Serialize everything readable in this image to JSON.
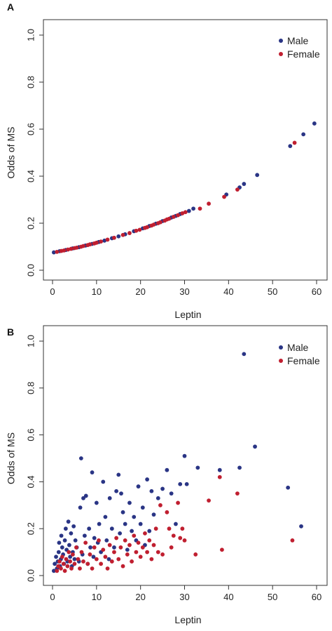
{
  "colors": {
    "male": "#2a3585",
    "female": "#c01f30",
    "axis": "#333333"
  },
  "chart_data": [
    {
      "panel": "A",
      "type": "scatter",
      "xlabel": "Leptin",
      "ylabel": "Odds of MS",
      "xlim": [
        0,
        60
      ],
      "ylim": [
        0,
        1.0
      ],
      "xticks": [
        "0",
        "10",
        "20",
        "30",
        "40",
        "50",
        "60"
      ],
      "yticks": [
        "0.0",
        "0.2",
        "0.4",
        "0.6",
        "0.8",
        "1.0"
      ],
      "grid": false,
      "legend": "top-right",
      "series": [
        {
          "name": "Male",
          "color": "#2a3585",
          "points": [
            [
              0.3,
              0.076
            ],
            [
              1.6,
              0.081
            ],
            [
              3.0,
              0.086
            ],
            [
              4.6,
              0.093
            ],
            [
              6.0,
              0.098
            ],
            [
              7.5,
              0.105
            ],
            [
              9.0,
              0.112
            ],
            [
              10.5,
              0.12
            ],
            [
              11.8,
              0.126
            ],
            [
              13.5,
              0.136
            ],
            [
              15.0,
              0.144
            ],
            [
              16.5,
              0.153
            ],
            [
              18.5,
              0.166
            ],
            [
              20.5,
              0.178
            ],
            [
              22.0,
              0.188
            ],
            [
              23.5,
              0.198
            ],
            [
              25.0,
              0.209
            ],
            [
              27.0,
              0.224
            ],
            [
              28.0,
              0.231
            ],
            [
              29.0,
              0.239
            ],
            [
              31.0,
              0.252
            ],
            [
              32.0,
              0.262
            ],
            [
              39.5,
              0.322
            ],
            [
              42.5,
              0.352
            ],
            [
              43.5,
              0.367
            ],
            [
              46.5,
              0.405
            ],
            [
              54.0,
              0.528
            ],
            [
              57.0,
              0.578
            ],
            [
              59.5,
              0.624
            ]
          ]
        },
        {
          "name": "Female",
          "color": "#c01f30",
          "points": [
            [
              1.0,
              0.078
            ],
            [
              2.0,
              0.082
            ],
            [
              2.6,
              0.084
            ],
            [
              3.5,
              0.088
            ],
            [
              4.2,
              0.091
            ],
            [
              5.0,
              0.094
            ],
            [
              5.5,
              0.096
            ],
            [
              6.5,
              0.1
            ],
            [
              7.0,
              0.103
            ],
            [
              8.0,
              0.107
            ],
            [
              8.5,
              0.11
            ],
            [
              9.5,
              0.114
            ],
            [
              10.0,
              0.117
            ],
            [
              11.0,
              0.122
            ],
            [
              12.5,
              0.13
            ],
            [
              14.0,
              0.138
            ],
            [
              16.0,
              0.15
            ],
            [
              17.5,
              0.158
            ],
            [
              19.0,
              0.168
            ],
            [
              19.8,
              0.172
            ],
            [
              21.0,
              0.18
            ],
            [
              21.5,
              0.183
            ],
            [
              22.5,
              0.19
            ],
            [
              23.0,
              0.194
            ],
            [
              24.0,
              0.2
            ],
            [
              24.5,
              0.204
            ],
            [
              25.5,
              0.211
            ],
            [
              26.0,
              0.216
            ],
            [
              26.5,
              0.219
            ],
            [
              27.5,
              0.227
            ],
            [
              28.5,
              0.234
            ],
            [
              29.5,
              0.242
            ],
            [
              30.2,
              0.247
            ],
            [
              33.5,
              0.262
            ],
            [
              35.5,
              0.283
            ],
            [
              39.0,
              0.312
            ],
            [
              42.0,
              0.343
            ],
            [
              55.0,
              0.542
            ]
          ]
        }
      ]
    },
    {
      "panel": "B",
      "type": "scatter",
      "xlabel": "Leptin",
      "ylabel": "Odds of MS",
      "xlim": [
        0,
        60
      ],
      "ylim": [
        0,
        1.0
      ],
      "xticks": [
        "0",
        "10",
        "20",
        "30",
        "40",
        "50",
        "60"
      ],
      "yticks": [
        "0.0",
        "0.2",
        "0.4",
        "0.6",
        "0.8",
        "1.0"
      ],
      "grid": false,
      "legend": "top-right",
      "series": [
        {
          "name": "Male",
          "color": "#2a3585",
          "points": [
            [
              0.3,
              0.02
            ],
            [
              0.5,
              0.05
            ],
            [
              0.8,
              0.08
            ],
            [
              1.0,
              0.03
            ],
            [
              1.2,
              0.06
            ],
            [
              1.4,
              0.1
            ],
            [
              1.5,
              0.14
            ],
            [
              1.7,
              0.04
            ],
            [
              1.9,
              0.07
            ],
            [
              2.0,
              0.17
            ],
            [
              2.2,
              0.12
            ],
            [
              2.4,
              0.09
            ],
            [
              2.6,
              0.05
            ],
            [
              2.8,
              0.15
            ],
            [
              3.0,
              0.2
            ],
            [
              3.2,
              0.11
            ],
            [
              3.4,
              0.06
            ],
            [
              3.6,
              0.23
            ],
            [
              3.8,
              0.13
            ],
            [
              4.0,
              0.08
            ],
            [
              4.2,
              0.18
            ],
            [
              4.4,
              0.04
            ],
            [
              4.6,
              0.1
            ],
            [
              4.8,
              0.21
            ],
            [
              5.0,
              0.07
            ],
            [
              5.2,
              0.15
            ],
            [
              5.5,
              0.12
            ],
            [
              6.0,
              0.06
            ],
            [
              6.3,
              0.29
            ],
            [
              6.5,
              0.5
            ],
            [
              6.8,
              0.09
            ],
            [
              7.0,
              0.33
            ],
            [
              7.3,
              0.17
            ],
            [
              7.6,
              0.34
            ],
            [
              8.0,
              0.05
            ],
            [
              8.3,
              0.2
            ],
            [
              8.6,
              0.12
            ],
            [
              9.0,
              0.44
            ],
            [
              9.3,
              0.08
            ],
            [
              9.5,
              0.16
            ],
            [
              10.0,
              0.31
            ],
            [
              10.3,
              0.14
            ],
            [
              10.6,
              0.22
            ],
            [
              11.0,
              0.1
            ],
            [
              11.5,
              0.4
            ],
            [
              12.0,
              0.25
            ],
            [
              12.3,
              0.15
            ],
            [
              12.8,
              0.07
            ],
            [
              13.0,
              0.33
            ],
            [
              13.5,
              0.2
            ],
            [
              14.0,
              0.12
            ],
            [
              14.5,
              0.36
            ],
            [
              15.0,
              0.43
            ],
            [
              15.3,
              0.18
            ],
            [
              15.6,
              0.35
            ],
            [
              16.0,
              0.27
            ],
            [
              16.5,
              0.22
            ],
            [
              17.0,
              0.11
            ],
            [
              17.5,
              0.31
            ],
            [
              18.0,
              0.19
            ],
            [
              18.5,
              0.25
            ],
            [
              19.0,
              0.15
            ],
            [
              19.5,
              0.38
            ],
            [
              20.0,
              0.22
            ],
            [
              20.5,
              0.29
            ],
            [
              21.0,
              0.13
            ],
            [
              21.5,
              0.41
            ],
            [
              22.0,
              0.19
            ],
            [
              22.5,
              0.36
            ],
            [
              23.0,
              0.26
            ],
            [
              24.0,
              0.33
            ],
            [
              25.0,
              0.37
            ],
            [
              26.0,
              0.45
            ],
            [
              27.0,
              0.35
            ],
            [
              28.0,
              0.22
            ],
            [
              29.0,
              0.39
            ],
            [
              30.0,
              0.51
            ],
            [
              30.5,
              0.39
            ],
            [
              33.0,
              0.46
            ],
            [
              38.0,
              0.45
            ],
            [
              42.5,
              0.46
            ],
            [
              43.5,
              0.945
            ],
            [
              46.0,
              0.55
            ],
            [
              53.5,
              0.375
            ],
            [
              56.5,
              0.21
            ]
          ]
        },
        {
          "name": "Female",
          "color": "#c01f30",
          "points": [
            [
              1.0,
              0.02
            ],
            [
              1.3,
              0.04
            ],
            [
              1.6,
              0.06
            ],
            [
              1.9,
              0.03
            ],
            [
              2.2,
              0.08
            ],
            [
              2.5,
              0.05
            ],
            [
              2.8,
              0.02
            ],
            [
              3.1,
              0.07
            ],
            [
              3.4,
              0.04
            ],
            [
              3.7,
              0.1
            ],
            [
              4.0,
              0.06
            ],
            [
              4.3,
              0.03
            ],
            [
              4.6,
              0.09
            ],
            [
              5.0,
              0.05
            ],
            [
              5.4,
              0.12
            ],
            [
              5.8,
              0.07
            ],
            [
              6.2,
              0.03
            ],
            [
              6.6,
              0.1
            ],
            [
              7.0,
              0.06
            ],
            [
              7.5,
              0.14
            ],
            [
              8.0,
              0.05
            ],
            [
              8.5,
              0.09
            ],
            [
              9.0,
              0.03
            ],
            [
              9.5,
              0.12
            ],
            [
              10.0,
              0.07
            ],
            [
              10.5,
              0.15
            ],
            [
              11.0,
              0.05
            ],
            [
              11.5,
              0.11
            ],
            [
              12.0,
              0.08
            ],
            [
              12.5,
              0.03
            ],
            [
              13.0,
              0.13
            ],
            [
              13.5,
              0.06
            ],
            [
              14.0,
              0.1
            ],
            [
              14.5,
              0.16
            ],
            [
              15.0,
              0.07
            ],
            [
              15.5,
              0.12
            ],
            [
              16.0,
              0.04
            ],
            [
              16.5,
              0.15
            ],
            [
              17.0,
              0.09
            ],
            [
              17.5,
              0.13
            ],
            [
              18.0,
              0.06
            ],
            [
              18.5,
              0.17
            ],
            [
              19.0,
              0.1
            ],
            [
              19.5,
              0.14
            ],
            [
              20.0,
              0.08
            ],
            [
              20.5,
              0.12
            ],
            [
              21.0,
              0.18
            ],
            [
              21.5,
              0.1
            ],
            [
              22.0,
              0.15
            ],
            [
              22.5,
              0.07
            ],
            [
              23.0,
              0.13
            ],
            [
              23.5,
              0.2
            ],
            [
              24.0,
              0.1
            ],
            [
              24.5,
              0.3
            ],
            [
              25.0,
              0.09
            ],
            [
              26.0,
              0.27
            ],
            [
              26.5,
              0.2
            ],
            [
              27.0,
              0.12
            ],
            [
              27.5,
              0.17
            ],
            [
              28.5,
              0.31
            ],
            [
              29.0,
              0.16
            ],
            [
              29.5,
              0.2
            ],
            [
              30.0,
              0.15
            ],
            [
              32.5,
              0.09
            ],
            [
              35.5,
              0.32
            ],
            [
              38.0,
              0.42
            ],
            [
              38.5,
              0.11
            ],
            [
              42.0,
              0.35
            ],
            [
              54.5,
              0.15
            ]
          ]
        }
      ]
    }
  ]
}
